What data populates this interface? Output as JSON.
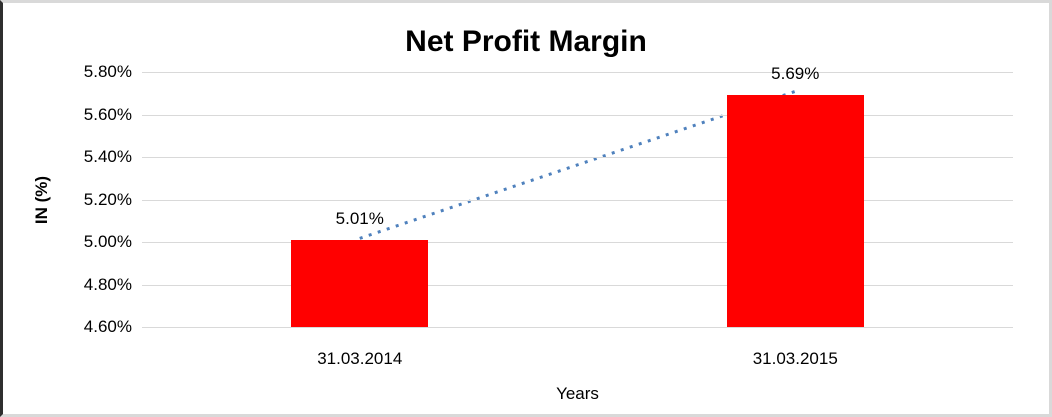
{
  "chart_data": {
    "type": "bar",
    "title": "Net Profit Margin",
    "xlabel": "Years",
    "ylabel": "IN (%)",
    "categories": [
      "31.03.2014",
      "31.03.2015"
    ],
    "values": [
      5.01,
      5.69
    ],
    "value_labels": [
      "5.01%",
      "5.69%"
    ],
    "ylim": [
      4.6,
      5.8
    ],
    "yticks": [
      {
        "value": 5.8,
        "label": "5.80%"
      },
      {
        "value": 5.6,
        "label": "5.60%"
      },
      {
        "value": 5.4,
        "label": "5.40%"
      },
      {
        "value": 5.2,
        "label": "5.20%"
      },
      {
        "value": 5.0,
        "label": "5.00%"
      },
      {
        "value": 4.8,
        "label": "4.80%"
      },
      {
        "value": 4.6,
        "label": "4.60%"
      }
    ],
    "gridlines": true,
    "legend": "none",
    "trendline": {
      "type": "linear",
      "style": "dotted"
    },
    "colors": {
      "bar": "#ff0000",
      "trendline": "#4f81bd",
      "gridline": "#d9d9d9",
      "text": "#000000"
    }
  }
}
